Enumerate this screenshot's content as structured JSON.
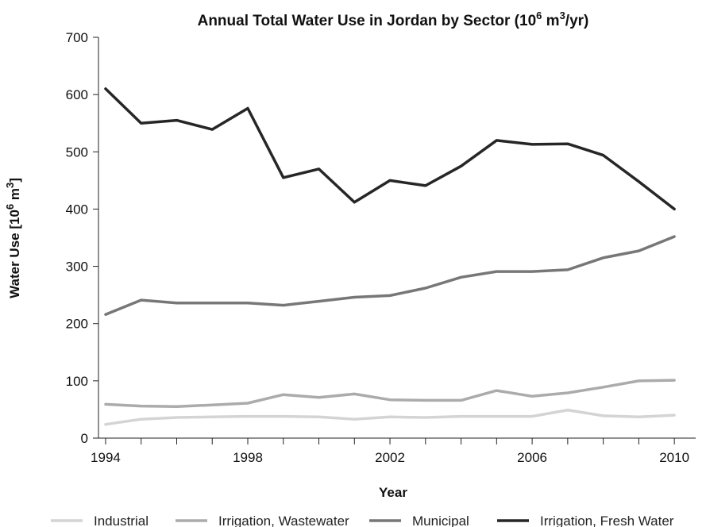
{
  "chart_data": {
    "type": "line",
    "title_main": "Annual Total Water Use in Jordan by Sector (10",
    "title_sup1": "6",
    "title_mid": " m",
    "title_sup2": "3",
    "title_end": "/yr)",
    "xlabel": "Year",
    "ylabel_main": "Water Use [10",
    "ylabel_sup1": "6",
    "ylabel_mid": " m",
    "ylabel_sup2": "3",
    "ylabel_end": "]",
    "x": [
      1994,
      1995,
      1996,
      1997,
      1998,
      1999,
      2000,
      2001,
      2002,
      2003,
      2004,
      2005,
      2006,
      2007,
      2008,
      2009,
      2010
    ],
    "xlim": [
      1993.8,
      2010.6
    ],
    "ylim": [
      0,
      700
    ],
    "x_ticks": [
      "1994",
      "1998",
      "2002",
      "2006",
      "2010"
    ],
    "y_ticks": [
      "0",
      "100",
      "200",
      "300",
      "400",
      "500",
      "600",
      "700"
    ],
    "grid": false,
    "legend_position": "bottom",
    "series": [
      {
        "name": "Industrial",
        "color": "#d4d4d4",
        "values": [
          24,
          33,
          36,
          37,
          38,
          38,
          37,
          33,
          37,
          36,
          38,
          38,
          38,
          49,
          39,
          37,
          40
        ]
      },
      {
        "name": "Irrigation, Wastewater",
        "color": "#ababab",
        "values": [
          59,
          56,
          55,
          58,
          61,
          76,
          71,
          77,
          67,
          66,
          66,
          83,
          73,
          79,
          89,
          100,
          101
        ]
      },
      {
        "name": "Municipal",
        "color": "#777777",
        "values": [
          216,
          241,
          236,
          236,
          236,
          232,
          239,
          246,
          249,
          262,
          281,
          291,
          291,
          294,
          315,
          327,
          352
        ]
      },
      {
        "name": "Irrigation, Fresh Water",
        "color": "#262626",
        "values": [
          610,
          550,
          555,
          539,
          576,
          455,
          470,
          412,
          450,
          441,
          475,
          520,
          513,
          514,
          494,
          448,
          400
        ]
      }
    ]
  }
}
